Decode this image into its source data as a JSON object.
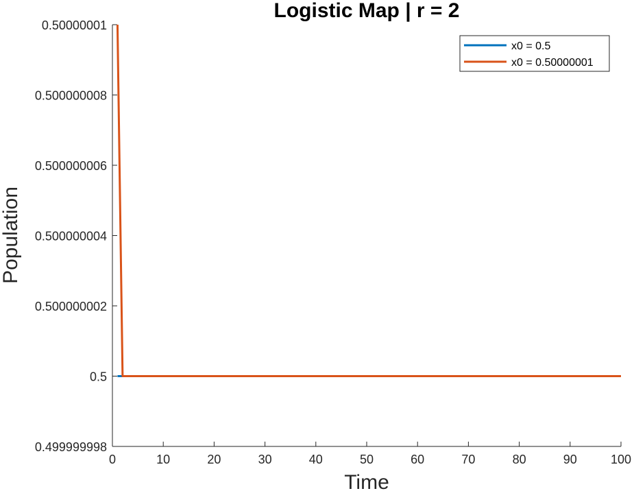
{
  "chart_data": {
    "type": "line",
    "title": "Logistic Map | r = 2",
    "xlabel": "Time",
    "ylabel": "Population",
    "xlim": [
      0,
      100
    ],
    "ylim": [
      0.499999998,
      0.50000001
    ],
    "x_ticks": [
      "0",
      "10",
      "20",
      "30",
      "40",
      "50",
      "60",
      "70",
      "80",
      "90",
      "100"
    ],
    "y_ticks": [
      "0.499999998",
      "0.5",
      "0.500000002",
      "0.500000004",
      "0.500000006",
      "0.500000008",
      "0.50000001"
    ],
    "grid": false,
    "legend_position": "top-right",
    "series": [
      {
        "name": "x0 = 0.5",
        "color": "#0072BD",
        "x": [
          1,
          2,
          100
        ],
        "y": [
          0.5,
          0.5,
          0.5
        ]
      },
      {
        "name": "x0 = 0.50000001",
        "color": "#D95319",
        "x": [
          1,
          2,
          3,
          100
        ],
        "y": [
          0.50000001,
          0.5,
          0.5,
          0.5
        ]
      }
    ]
  }
}
